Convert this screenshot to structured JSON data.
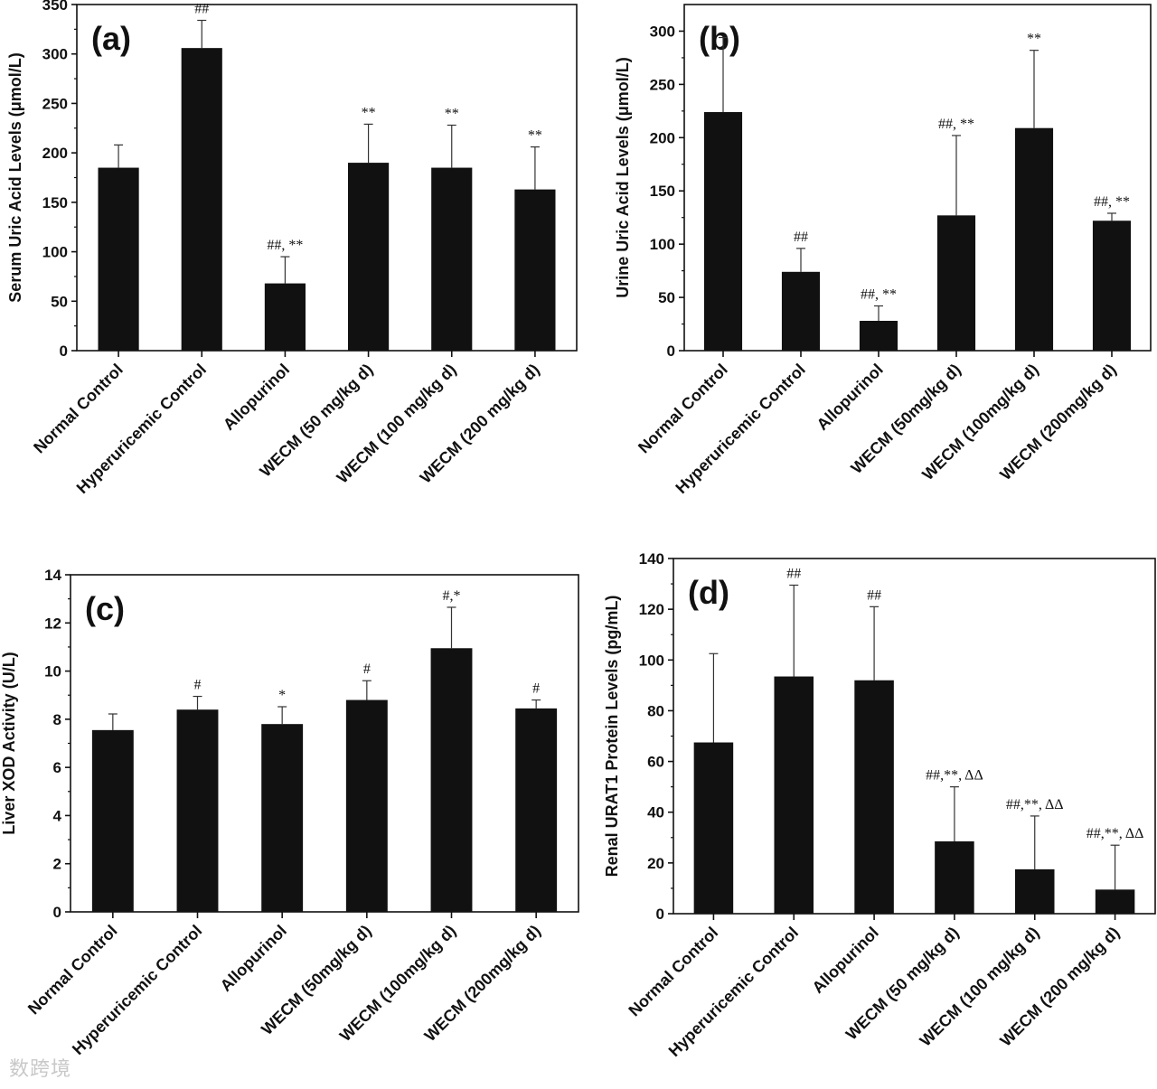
{
  "watermark": "数跨境",
  "chart_data": [
    {
      "type": "bar",
      "panel": "(a)",
      "ylabel": "Serum Uric Acid Levels (μmol/L)",
      "xlabel": "",
      "ylim": [
        0,
        350
      ],
      "yticks": [
        0,
        50,
        100,
        150,
        200,
        250,
        300,
        350
      ],
      "categories": [
        "Normal Control",
        "Hyperuricemic Control",
        "Allopurinol",
        "WECM (50 mg/kg d)",
        "WECM (100 mg/kg d)",
        "WECM (200 mg/kg d)"
      ],
      "values": [
        185,
        306,
        68,
        190,
        185,
        163
      ],
      "errors": [
        23,
        28,
        27,
        39,
        43,
        43
      ],
      "annotations": [
        "",
        "##",
        "##, **",
        "**",
        "**",
        "**"
      ]
    },
    {
      "type": "bar",
      "panel": "(b)",
      "ylabel": "Urine Uric Acid Levels (μmol/L)",
      "xlabel": "",
      "ylim": [
        0,
        325
      ],
      "yticks": [
        0,
        50,
        100,
        150,
        200,
        250,
        300
      ],
      "categories": [
        "Normal Control",
        "Hyperuricemic Control",
        "Allopurinol",
        "WECM (50mg/kg d)",
        "WECM (100mg/kg d)",
        "WECM (200mg/kg d)"
      ],
      "values": [
        224,
        74,
        28,
        127,
        209,
        122
      ],
      "errors": [
        70,
        22,
        14,
        75,
        73,
        7
      ],
      "annotations": [
        "",
        "##",
        "##, **",
        "##, **",
        "**",
        "##, **"
      ]
    },
    {
      "type": "bar",
      "panel": "(c)",
      "ylabel": "Liver XOD Activity (U/L)",
      "xlabel": "",
      "ylim": [
        0,
        14
      ],
      "yticks": [
        0,
        2,
        4,
        6,
        8,
        10,
        12,
        14
      ],
      "categories": [
        "Normal Control",
        "Hyperuricemic Control",
        "Allopurinol",
        "WECM (50mg/kg d)",
        "WECM (100mg/kg d)",
        "WECM (200mg/kg d)"
      ],
      "values": [
        7.55,
        8.4,
        7.8,
        8.8,
        10.95,
        8.45
      ],
      "errors": [
        0.67,
        0.55,
        0.72,
        0.8,
        1.7,
        0.35
      ],
      "annotations": [
        "",
        "#",
        "*",
        "#",
        "#,*",
        "#"
      ]
    },
    {
      "type": "bar",
      "panel": "(d)",
      "ylabel": "Renal URAT1 Protein Levels (pg/mL)",
      "xlabel": "",
      "ylim": [
        0,
        140
      ],
      "yticks": [
        0,
        20,
        40,
        60,
        80,
        100,
        120,
        140
      ],
      "categories": [
        "Normal Control",
        "Hyperuricemic Control",
        "Allopurinol",
        "WECM (50 mg/kg d)",
        "WECM (100 mg/kg d)",
        "WECM (200 mg/kg d)"
      ],
      "values": [
        67.5,
        93.5,
        92,
        28.5,
        17.5,
        9.5
      ],
      "errors": [
        35,
        36,
        29,
        21.5,
        21,
        17.5
      ],
      "annotations": [
        "",
        "##",
        "##",
        "##,**, ΔΔ",
        "##,**, ΔΔ",
        "##,**, ΔΔ"
      ]
    }
  ]
}
